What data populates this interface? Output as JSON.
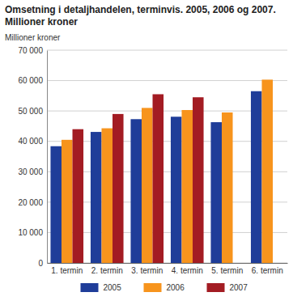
{
  "chart_data": {
    "type": "bar",
    "title": "Omsetning i detaljhandelen, terminvis. 2005, 2006 og 2007. Millioner kroner",
    "y_label": "Millioner kroner",
    "categories": [
      "1. termin",
      "2. termin",
      "3. termin",
      "4. termin",
      "5. termin",
      "6. termin"
    ],
    "series": [
      {
        "name": "2005",
        "color": "#1f3d99",
        "values": [
          38400,
          43100,
          47300,
          48100,
          46300,
          56500
        ]
      },
      {
        "name": "2006",
        "color": "#f7941d",
        "values": [
          40500,
          44300,
          51000,
          50300,
          49500,
          60300
        ]
      },
      {
        "name": "2007",
        "color": "#a31c23",
        "values": [
          44000,
          49000,
          55500,
          54500,
          null,
          null
        ]
      }
    ],
    "ylim": [
      0,
      70000
    ],
    "yticks": [
      0,
      {
        "value": 10000,
        "label": "10 000"
      },
      {
        "value": 20000,
        "label": "20 000"
      },
      {
        "value": 30000,
        "label": "30 000"
      },
      {
        "value": 40000,
        "label": "40 000"
      },
      {
        "value": 50000,
        "label": "50 000"
      },
      {
        "value": 60000,
        "label": "60 000"
      },
      {
        "value": 70000,
        "label": "70 000"
      }
    ],
    "grid": true,
    "legend": "bottom"
  }
}
